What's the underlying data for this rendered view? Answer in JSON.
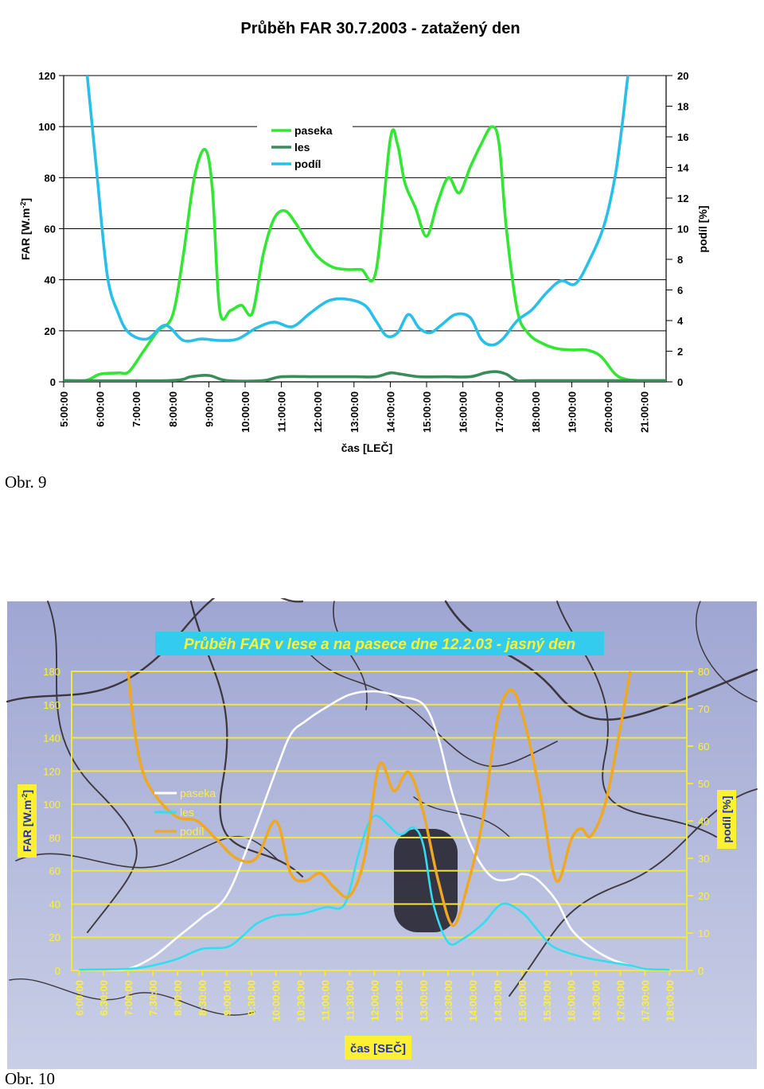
{
  "figures": [
    {
      "caption": "Obr. 9",
      "chart_data": {
        "type": "line",
        "title": "Průběh FAR 30.7.2003 - zatažený den",
        "xlabel": "čas [LEČ]",
        "ylabel": "FAR [W.m-2]",
        "y2label": "podíl [%]",
        "x_ticks": [
          "5:00:00",
          "6:00:00",
          "7:00:00",
          "8:00:00",
          "9:00:00",
          "10:00:00",
          "11:00:00",
          "12:00:00",
          "13:00:00",
          "14:00:00",
          "15:00:00",
          "16:00:00",
          "17:00:00",
          "18:00:00",
          "19:00:00",
          "20:00:00",
          "21:00:00"
        ],
        "xlim": [
          5,
          21.6
        ],
        "ylim": [
          0,
          120
        ],
        "y_ticks": [
          0,
          20,
          40,
          60,
          80,
          100,
          120
        ],
        "y2lim": [
          0,
          20
        ],
        "y2_ticks": [
          0,
          2,
          4,
          6,
          8,
          10,
          12,
          14,
          16,
          18,
          20
        ],
        "grid": "horizontal",
        "legend": "top-center",
        "colors": {
          "paseka": "#33e633",
          "les": "#3a8c5a",
          "podil": "#29bfe8"
        },
        "series": [
          {
            "name": "paseka",
            "axis": "left",
            "x": [
              5.0,
              5.6,
              6.0,
              6.5,
              6.8,
              7.2,
              7.6,
              8.0,
              8.3,
              8.6,
              8.9,
              9.1,
              9.3,
              9.6,
              9.9,
              10.2,
              10.5,
              10.8,
              11.1,
              11.4,
              11.7,
              12.0,
              12.4,
              12.8,
              13.2,
              13.6,
              14.0,
              14.2,
              14.4,
              14.7,
              15.0,
              15.3,
              15.6,
              15.9,
              16.2,
              16.5,
              16.8,
              17.0,
              17.2,
              17.5,
              17.8,
              18.2,
              18.6,
              19.0,
              19.4,
              19.8,
              20.2,
              20.5,
              20.8,
              21.0,
              21.6
            ],
            "y": [
              0.5,
              0.5,
              3,
              3.5,
              4,
              12,
              20,
              26,
              50,
              80,
              91,
              75,
              28,
              28,
              30,
              27,
              50,
              64,
              67,
              62,
              55,
              49,
              45,
              44,
              44,
              43,
              95,
              93,
              78,
              68,
              57,
              70,
              80,
              74,
              84,
              93,
              100,
              93,
              60,
              28,
              19,
              15,
              13,
              12.5,
              12.5,
              10,
              3,
              1,
              0.5,
              0.5,
              0.5
            ]
          },
          {
            "name": "les",
            "axis": "left",
            "x": [
              5.0,
              7.9,
              8.5,
              9.0,
              9.5,
              10.5,
              11.0,
              12.0,
              13.0,
              13.6,
              14.0,
              14.3,
              14.8,
              15.5,
              16.2,
              16.6,
              16.9,
              17.2,
              17.5,
              18.0,
              21.6
            ],
            "y": [
              0.5,
              0.5,
              2,
              2.5,
              0.5,
              0.5,
              2,
              2,
              2,
              2,
              3.5,
              3,
              2,
              2,
              2,
              3.5,
              4,
              3,
              0.5,
              0.5,
              0.5
            ]
          },
          {
            "name": "podíl",
            "axis": "right",
            "x": [
              5.65,
              5.9,
              6.2,
              6.5,
              6.8,
              7.3,
              7.8,
              8.3,
              8.8,
              9.3,
              9.8,
              10.3,
              10.8,
              11.3,
              11.8,
              12.3,
              12.8,
              13.3,
              13.6,
              13.9,
              14.2,
              14.5,
              14.8,
              15.1,
              15.4,
              15.8,
              16.2,
              16.5,
              16.8,
              17.1,
              17.5,
              17.9,
              18.3,
              18.7,
              19.1,
              19.5,
              19.9,
              20.2,
              20.4,
              20.55,
              20.65
            ],
            "y": [
              20,
              14,
              7,
              4.5,
              3.2,
              2.8,
              3.7,
              2.7,
              2.8,
              2.7,
              2.8,
              3.5,
              3.9,
              3.6,
              4.5,
              5.3,
              5.4,
              5,
              4,
              3,
              3.2,
              4.4,
              3.5,
              3.2,
              3.7,
              4.4,
              4.2,
              2.8,
              2.4,
              2.8,
              4,
              4.7,
              5.8,
              6.6,
              6.4,
              8,
              10.3,
              13.5,
              17,
              20,
              21
            ]
          }
        ]
      }
    },
    {
      "caption": "Obr. 10",
      "chart_data": {
        "type": "line",
        "title": "Průběh FAR v lese a na pasece dne 12.2.03 - jasný den",
        "xlabel": "čas [SEČ]",
        "ylabel": "FAR [W.m-2]",
        "y2label": "podíl [%]",
        "x_ticks": [
          "6:00:00",
          "6:30:00",
          "7:00:00",
          "7:30:00",
          "8:00:00",
          "8:30:00",
          "9:00:00",
          "9:30:00",
          "10:00:00",
          "10:30:00",
          "11:00:00",
          "11:30:00",
          "12:00:00",
          "12:30:00",
          "13:00:00",
          "13:30:00",
          "14:00:00",
          "14:30:00",
          "15:00:00",
          "15:30:00",
          "16:00:00",
          "16:30:00",
          "17:00:00",
          "17:30:00",
          "18:00:00"
        ],
        "xlim": [
          5.85,
          18.35
        ],
        "ylim": [
          0,
          180
        ],
        "y_ticks": [
          0,
          20,
          40,
          60,
          80,
          100,
          120,
          140,
          160,
          180
        ],
        "y2lim": [
          0,
          80
        ],
        "y2_ticks": [
          0,
          10,
          20,
          30,
          40,
          50,
          60,
          70,
          80
        ],
        "grid": "horizontal",
        "legend": "left",
        "colors": {
          "paseka": "#ffffff",
          "les": "#33ddee",
          "podil": "#f0a820",
          "axes": "#f5e63a",
          "label_bg": "#fff033",
          "title_bg": "#33ccee"
        },
        "series": [
          {
            "name": "paseka",
            "axis": "left",
            "x": [
              6.0,
              6.5,
              7.0,
              7.5,
              8.0,
              8.5,
              9.0,
              9.5,
              10.0,
              10.3,
              10.6,
              11.0,
              11.5,
              12.0,
              12.5,
              13.0,
              13.3,
              13.6,
              14.0,
              14.4,
              14.8,
              15.0,
              15.3,
              15.7,
              16.0,
              16.4,
              16.8,
              17.2,
              17.5,
              18.0
            ],
            "y": [
              0.5,
              0.5,
              1,
              8,
              20,
              32,
              45,
              80,
              120,
              142,
              150,
              158,
              166,
              168,
              165,
              160,
              140,
              105,
              73,
              56,
              55,
              58,
              55,
              42,
              25,
              14,
              7,
              3,
              1,
              0.5
            ]
          },
          {
            "name": "les",
            "axis": "left",
            "x": [
              6.0,
              7.0,
              7.5,
              8.0,
              8.5,
              9.0,
              9.3,
              9.6,
              10.0,
              10.5,
              11.0,
              11.4,
              11.7,
              12.0,
              12.5,
              12.8,
              13.0,
              13.2,
              13.5,
              13.8,
              14.2,
              14.6,
              15.0,
              15.3,
              15.6,
              16.0,
              16.4,
              16.8,
              17.2,
              17.5,
              18.0
            ],
            "y": [
              0.5,
              1,
              3,
              7,
              13,
              14,
              20,
              28,
              33,
              34,
              38,
              40,
              72,
              93,
              82,
              86,
              75,
              40,
              17,
              19,
              28,
              40,
              35,
              25,
              15,
              10,
              7,
              5,
              3,
              1,
              0.5
            ]
          },
          {
            "name": "podíl",
            "axis": "right",
            "x": [
              7.0,
              7.12,
              7.3,
              7.6,
              8.0,
              8.4,
              8.8,
              9.2,
              9.6,
              10.0,
              10.3,
              10.6,
              10.9,
              11.2,
              11.5,
              11.8,
              12.1,
              12.4,
              12.7,
              13.0,
              13.3,
              13.6,
              13.9,
              14.2,
              14.5,
              14.8,
              15.1,
              15.4,
              15.7,
              16.0,
              16.2,
              16.4,
              16.7,
              17.0,
              17.2
            ],
            "y": [
              80,
              65,
              53,
              46,
              41,
              40,
              35,
              30,
              30,
              40,
              26,
              24,
              26,
              22,
              20,
              30,
              55,
              48,
              53,
              42,
              24,
              12,
              23,
              40,
              67,
              75,
              64,
              45,
              24,
              35,
              38,
              36,
              45,
              65,
              80
            ]
          }
        ]
      }
    }
  ]
}
